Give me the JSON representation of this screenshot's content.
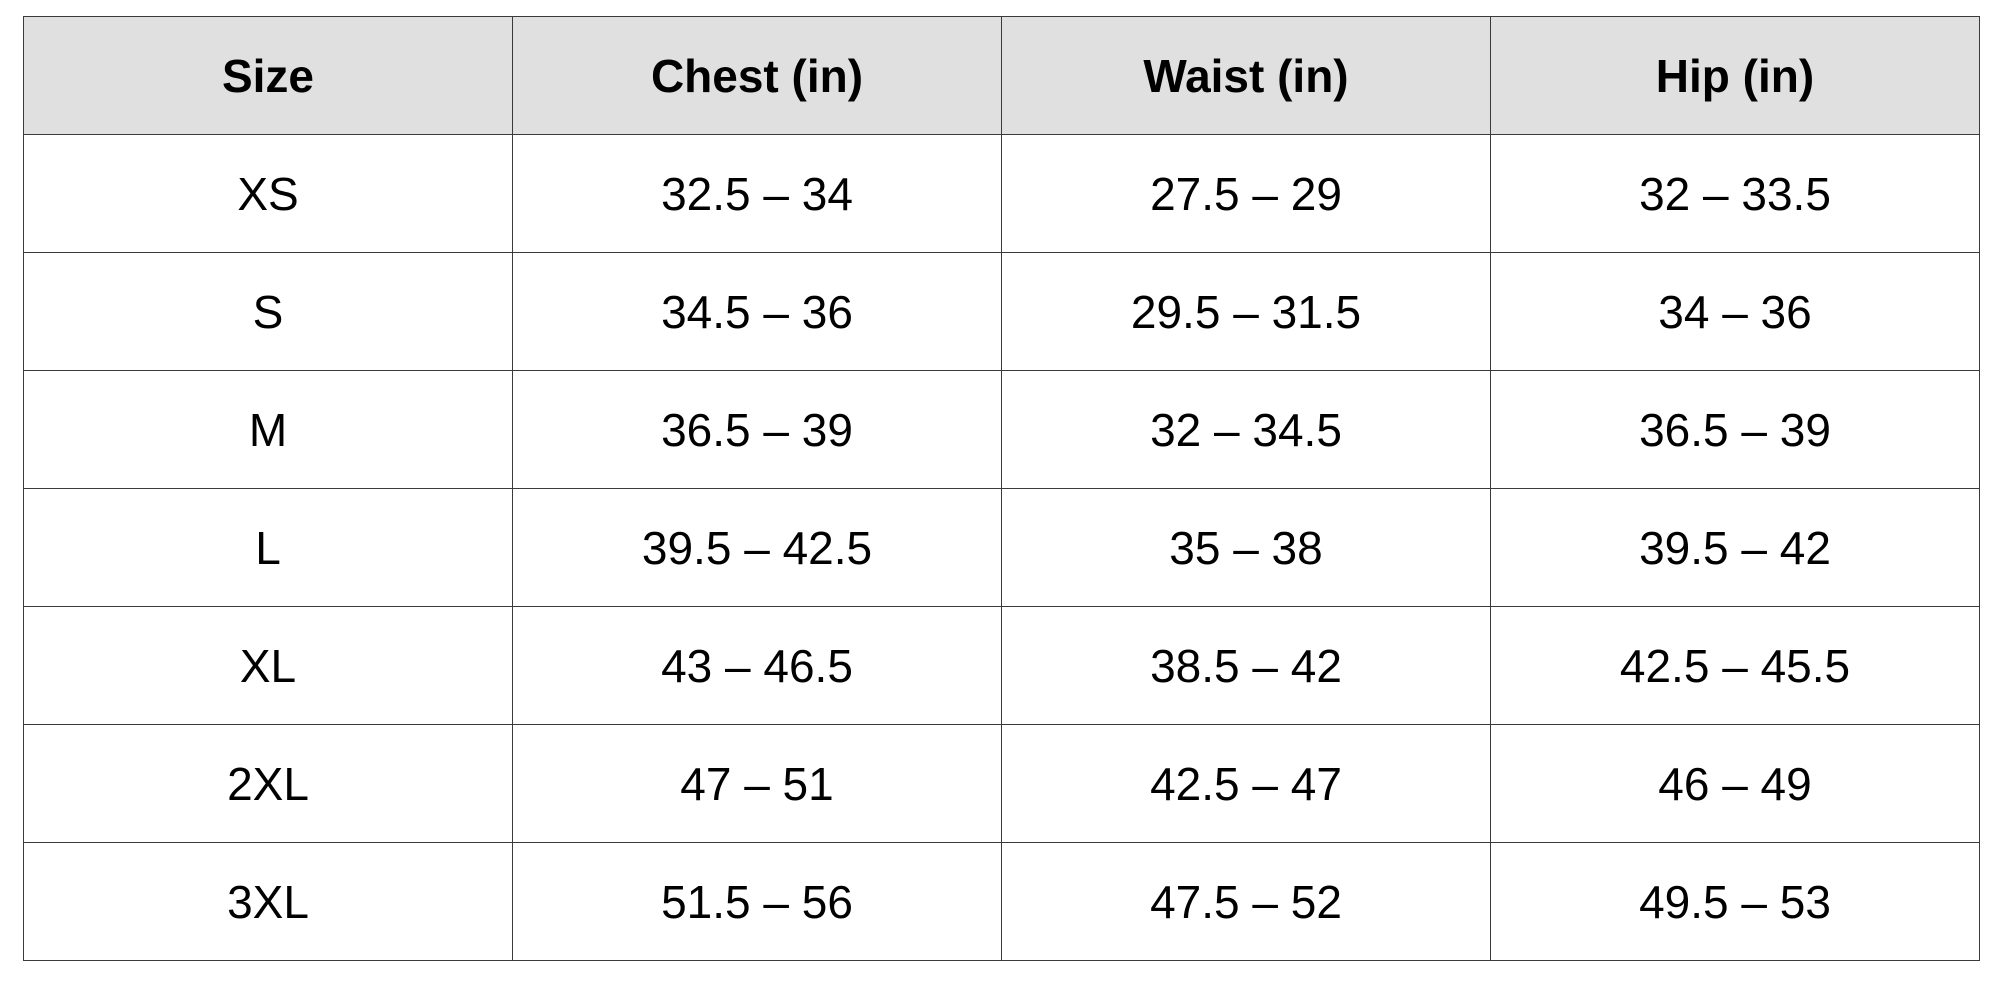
{
  "table": {
    "headers": [
      "Size",
      "Chest (in)",
      "Waist (in)",
      "Hip (in)"
    ],
    "rows": [
      [
        "XS",
        "32.5 – 34",
        "27.5 – 29",
        "32 – 33.5"
      ],
      [
        "S",
        "34.5 – 36",
        "29.5 – 31.5",
        "34 – 36"
      ],
      [
        "M",
        "36.5 – 39",
        "32 – 34.5",
        "36.5 – 39"
      ],
      [
        "L",
        "39.5 – 42.5",
        "35 – 38",
        "39.5 – 42"
      ],
      [
        "XL",
        "43 – 46.5",
        "38.5 – 42",
        "42.5 – 45.5"
      ],
      [
        "2XL",
        "47 – 51",
        "42.5 – 47",
        "46 – 49"
      ],
      [
        "3XL",
        "51.5 – 56",
        "47.5 – 52",
        "49.5 – 53"
      ]
    ],
    "colors": {
      "header_bg": "#e0e0e0",
      "border": "#3a3a3a",
      "text": "#000000"
    }
  }
}
